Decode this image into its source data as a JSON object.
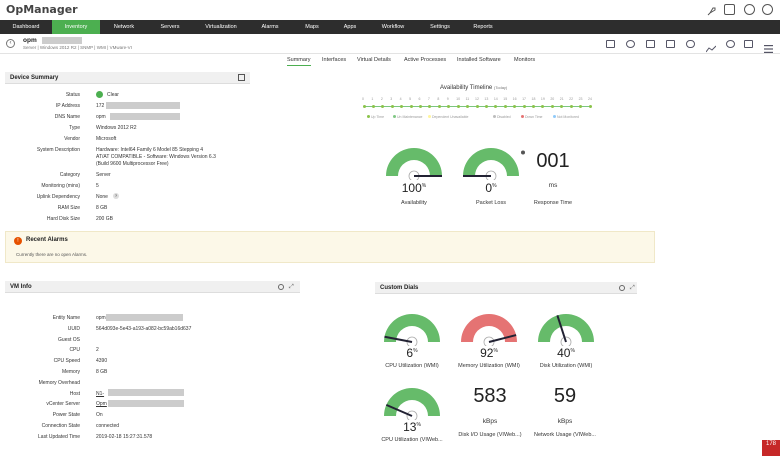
{
  "app": {
    "title": "OpManager"
  },
  "nav": {
    "items": [
      "Dashboard",
      "Inventory",
      "Network",
      "Servers",
      "Virtualization",
      "Alarms",
      "Maps",
      "Apps",
      "Workflow",
      "Settings",
      "Reports"
    ],
    "active": "Inventory"
  },
  "device": {
    "name": "opm",
    "subtitle": "Server | Windows 2012 R2 | SNMP | WMI | VMware-VI"
  },
  "tabs": {
    "items": [
      "Summary",
      "Interfaces",
      "Virtual Details",
      "Active Processes",
      "Installed Software",
      "Monitors"
    ],
    "active": "Summary"
  },
  "summary": {
    "title": "Device Summary",
    "rows": [
      {
        "label": "Status",
        "value": "Clear"
      },
      {
        "label": "IP Address",
        "value": "172"
      },
      {
        "label": "DNS Name",
        "value": "opm"
      },
      {
        "label": "Type",
        "value": "Windows 2012 R2"
      },
      {
        "label": "Vendor",
        "value": "Microsoft"
      },
      {
        "label": "System Description",
        "value": "Hardware: Intel64 Family 6 Model 85 Stepping 4"
      },
      {
        "label": "Category",
        "value": "Server"
      },
      {
        "label": "Monitoring (mins)",
        "value": "5"
      },
      {
        "label": "Uplink Dependency",
        "value": "None"
      },
      {
        "label": "RAM Size",
        "value": "8 GB"
      },
      {
        "label": "Hard Disk Size",
        "value": "200 GB"
      }
    ],
    "desc_line2": "AT/AT COMPATIBLE - Software: Windows Version 6.3",
    "desc_line3": "(Build 9600 Multiprocessor Free)"
  },
  "availability": {
    "title": "Availability Timeline",
    "period": "(Today)",
    "hours": [
      "0",
      "1",
      "2",
      "3",
      "4",
      "5",
      "6",
      "7",
      "8",
      "9",
      "10",
      "11",
      "12",
      "13",
      "14",
      "15",
      "16",
      "17",
      "18",
      "19",
      "20",
      "21",
      "22",
      "23",
      "24"
    ],
    "legend": [
      "Up Time",
      "Un Maintenance",
      "Dependent Unavailable",
      "Disabled",
      "Down Time",
      "Not Monitored"
    ],
    "colors": {
      "up": "#8bc34a",
      "maint": "#81c784",
      "dep": "#fff59d",
      "disabled": "#bdbdbd",
      "down": "#e57373",
      "notmon": "#90caf9"
    }
  },
  "gauges": {
    "availability": {
      "value": "100",
      "unit": "%",
      "label": "Availability",
      "level": 1.0
    },
    "packet_loss": {
      "value": "0",
      "unit": "%",
      "label": "Packet Loss",
      "level": 0.0
    },
    "response_time": {
      "value": "001",
      "unit": "ms",
      "label": "Response Time"
    }
  },
  "alarms": {
    "title": "Recent Alarms",
    "message": "Currently there are no open Alarms."
  },
  "vminfo": {
    "title": "VM Info",
    "rows": [
      {
        "label": "Entity Name",
        "value": "opm"
      },
      {
        "label": "UUID",
        "value": "564d093e-5e43-a193-a082-bc59ab16d637"
      },
      {
        "label": "Guest OS",
        "value": ""
      },
      {
        "label": "CPU",
        "value": "2"
      },
      {
        "label": "CPU Speed",
        "value": "4390"
      },
      {
        "label": "Memory",
        "value": "8 GB"
      },
      {
        "label": "Memory Overhead",
        "value": ""
      },
      {
        "label": "Host",
        "value": "N1-"
      },
      {
        "label": "vCenter Server",
        "value": "Opm"
      },
      {
        "label": "Power State",
        "value": "On"
      },
      {
        "label": "Connection State",
        "value": "connected"
      },
      {
        "label": "Last Updated Time",
        "value": "2019-02-18 15:27:31.578"
      }
    ]
  },
  "dials": {
    "title": "Custom Dials",
    "items": [
      {
        "value": "6",
        "unit": "%",
        "label": "CPU Utilization (WMI)",
        "level": 0.06,
        "color": "#66bb6a"
      },
      {
        "value": "92",
        "unit": "%",
        "label": "Memory Utilization (WMI)",
        "level": 0.92,
        "color": "#e57373"
      },
      {
        "value": "40",
        "unit": "%",
        "label": "Disk Utilization (WMI)",
        "level": 0.4,
        "color": "#66bb6a"
      },
      {
        "value": "13",
        "unit": "%",
        "label": "CPU Utilization (VIWeb...",
        "level": 0.13,
        "color": "#66bb6a"
      },
      {
        "value": "583",
        "unit": "kBps",
        "label": "Disk I/O Usage (VIWeb...)"
      },
      {
        "value": "59",
        "unit": "kBps",
        "label": "Network Usage (VIWeb..."
      }
    ]
  },
  "badge": {
    "text": "178"
  }
}
